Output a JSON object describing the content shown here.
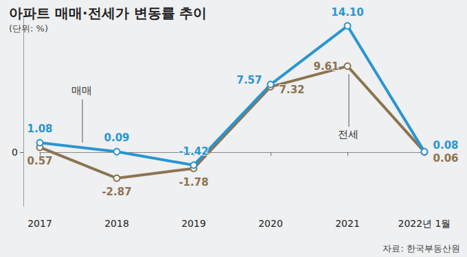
{
  "chart_data": {
    "type": "line",
    "title": "아파트 매매·전세가 변동률 추이",
    "subtitle": "(단위: %)",
    "annotations": [
      "자료: 한국부동산원"
    ],
    "categories": [
      "2017",
      "2018",
      "2019",
      "2020",
      "2021",
      "2022년 1월"
    ],
    "series": [
      {
        "name": "전세",
        "color": "#8c7350",
        "marker": "circle",
        "values": [
          0.57,
          -2.87,
          -1.78,
          7.32,
          9.61,
          0.06
        ],
        "value_labels": [
          "0.57",
          "-2.87",
          "-1.78",
          "7.32",
          "9.61",
          "0.06"
        ]
      },
      {
        "name": "매매",
        "color": "#2a95d0",
        "marker": "circle",
        "values": [
          1.08,
          0.09,
          -1.42,
          7.57,
          14.1,
          0.08
        ],
        "value_labels": [
          "1.08",
          "0.09",
          "-1.42",
          "7.57",
          "14.10",
          "0.08"
        ]
      }
    ],
    "ylim": [
      -6,
      15
    ],
    "yticks": [
      0
    ],
    "data_labels": true,
    "grid": false
  }
}
